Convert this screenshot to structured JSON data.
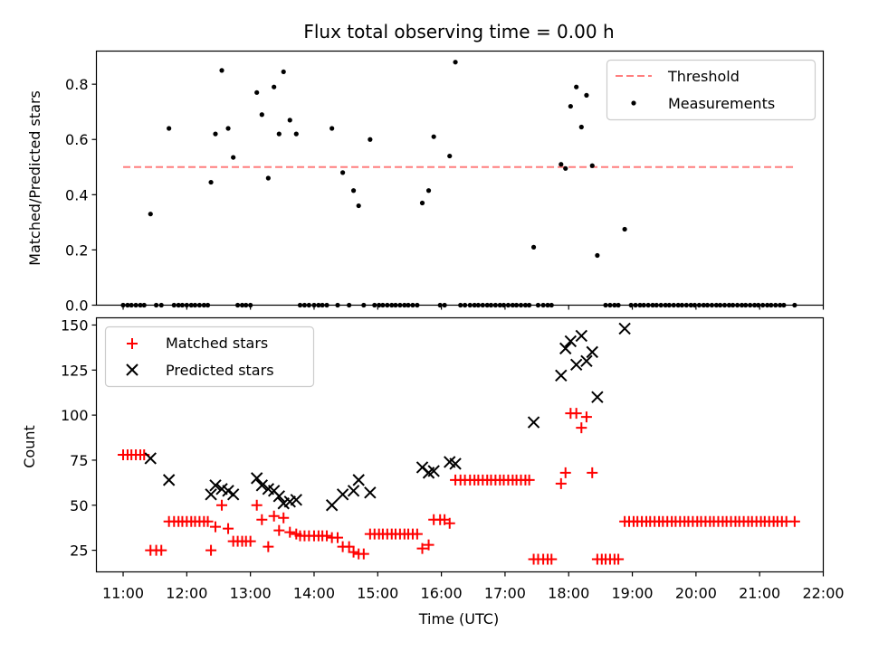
{
  "chart_data": [
    {
      "type": "scatter",
      "title": "Flux total observing time = 0.00 h",
      "xlabel": "",
      "ylabel": "Matched/Predicted stars",
      "xlim_hours": [
        10.58,
        22.0
      ],
      "ylim": [
        0,
        0.92
      ],
      "yticks": [
        0.0,
        0.2,
        0.4,
        0.6,
        0.8
      ],
      "ytick_labels": [
        "0.0",
        "0.2",
        "0.4",
        "0.6",
        "0.8"
      ],
      "threshold": {
        "name": "Threshold",
        "value": 0.5,
        "x_start": 11.0,
        "x_end": 21.55,
        "color": "#ff7f7f"
      },
      "series": [
        {
          "name": "Measurements",
          "color": "#000000",
          "x": [
            11.43,
            11.72,
            12.38,
            12.45,
            12.55,
            12.65,
            12.73,
            13.1,
            13.18,
            13.28,
            13.37,
            13.45,
            13.52,
            13.62,
            13.72,
            14.28,
            14.45,
            14.62,
            14.7,
            14.88,
            15.7,
            15.8,
            15.88,
            16.13,
            16.22,
            17.45,
            17.88,
            17.95,
            18.03,
            18.12,
            18.2,
            18.28,
            18.37,
            18.45,
            18.88,
            11.0,
            11.07,
            11.13,
            11.2,
            11.27,
            11.33,
            11.52,
            11.6,
            11.8,
            11.87,
            11.93,
            12.0,
            12.07,
            12.13,
            12.2,
            12.27,
            12.33,
            12.8,
            12.87,
            12.93,
            13.0,
            13.78,
            13.85,
            13.92,
            14.0,
            14.07,
            14.13,
            14.2,
            14.37,
            14.55,
            14.78,
            14.95,
            15.02,
            15.08,
            15.15,
            15.22,
            15.28,
            15.35,
            15.42,
            15.48,
            15.55,
            15.62,
            15.98,
            16.05,
            16.3,
            16.37,
            16.45,
            16.52,
            16.58,
            16.65,
            16.72,
            16.78,
            16.85,
            16.92,
            16.98,
            17.05,
            17.12,
            17.18,
            17.25,
            17.32,
            17.38,
            17.52,
            17.6,
            17.67,
            17.73,
            18.58,
            18.65,
            18.72,
            18.78,
            18.98,
            19.05,
            19.12,
            19.18,
            19.25,
            19.32,
            19.38,
            19.45,
            19.52,
            19.58,
            19.65,
            19.72,
            19.78,
            19.85,
            19.92,
            19.98,
            20.05,
            20.12,
            20.18,
            20.25,
            20.32,
            20.38,
            20.45,
            20.52,
            20.58,
            20.65,
            20.72,
            20.78,
            20.85,
            20.92,
            20.98,
            21.05,
            21.12,
            21.18,
            21.25,
            21.32,
            21.38,
            21.55
          ],
          "values": [
            0.33,
            0.64,
            0.445,
            0.62,
            0.85,
            0.64,
            0.535,
            0.77,
            0.69,
            0.46,
            0.79,
            0.62,
            0.845,
            0.67,
            0.62,
            0.64,
            0.48,
            0.415,
            0.36,
            0.6,
            0.37,
            0.415,
            0.61,
            0.54,
            0.88,
            0.21,
            0.51,
            0.495,
            0.72,
            0.79,
            0.645,
            0.76,
            0.505,
            0.18,
            0.275,
            0,
            0,
            0,
            0,
            0,
            0,
            0,
            0,
            0,
            0,
            0,
            0,
            0,
            0,
            0,
            0,
            0,
            0,
            0,
            0,
            0,
            0,
            0,
            0,
            0,
            0,
            0,
            0,
            0,
            0,
            0,
            0,
            0,
            0,
            0,
            0,
            0,
            0,
            0,
            0,
            0,
            0,
            0,
            0,
            0,
            0,
            0,
            0,
            0,
            0,
            0,
            0,
            0,
            0,
            0,
            0,
            0,
            0,
            0,
            0,
            0,
            0,
            0,
            0,
            0,
            0,
            0,
            0,
            0,
            0,
            0,
            0,
            0,
            0,
            0,
            0,
            0,
            0,
            0,
            0,
            0,
            0,
            0,
            0,
            0,
            0,
            0,
            0,
            0,
            0,
            0,
            0,
            0,
            0,
            0,
            0,
            0,
            0,
            0,
            0,
            0,
            0,
            0,
            0,
            0,
            0,
            0
          ]
        }
      ],
      "legend": {
        "placement": "top-right",
        "entries": [
          "Threshold",
          "Measurements"
        ]
      }
    },
    {
      "type": "scatter",
      "title": "",
      "xlabel": "Time (UTC)",
      "ylabel": "Count",
      "xlim_hours": [
        10.58,
        22.0
      ],
      "ylim": [
        13,
        154
      ],
      "xticks": [
        11,
        12,
        13,
        14,
        15,
        16,
        17,
        18,
        19,
        20,
        21,
        22
      ],
      "xtick_labels": [
        "11:00",
        "12:00",
        "13:00",
        "14:00",
        "15:00",
        "16:00",
        "17:00",
        "18:00",
        "19:00",
        "20:00",
        "21:00",
        "22:00"
      ],
      "yticks": [
        25,
        50,
        75,
        100,
        125,
        150
      ],
      "ytick_labels": [
        "25",
        "50",
        "75",
        "100",
        "125",
        "150"
      ],
      "series": [
        {
          "name": "Matched stars",
          "marker": "plus",
          "color": "#ff0000",
          "x": [
            11.0,
            11.07,
            11.13,
            11.2,
            11.27,
            11.33,
            11.43,
            11.52,
            11.6,
            11.72,
            11.8,
            11.87,
            11.93,
            12.0,
            12.07,
            12.13,
            12.2,
            12.27,
            12.33,
            12.38,
            12.45,
            12.55,
            12.65,
            12.73,
            12.8,
            12.87,
            12.93,
            13.0,
            13.1,
            13.18,
            13.28,
            13.37,
            13.45,
            13.52,
            13.62,
            13.72,
            13.78,
            13.85,
            13.92,
            14.0,
            14.07,
            14.13,
            14.2,
            14.28,
            14.37,
            14.45,
            14.55,
            14.62,
            14.7,
            14.78,
            14.88,
            14.95,
            15.02,
            15.08,
            15.15,
            15.22,
            15.28,
            15.35,
            15.42,
            15.48,
            15.55,
            15.62,
            15.7,
            15.8,
            15.88,
            15.98,
            16.05,
            16.13,
            16.22,
            16.3,
            16.37,
            16.45,
            16.52,
            16.58,
            16.65,
            16.72,
            16.78,
            16.85,
            16.92,
            16.98,
            17.05,
            17.12,
            17.18,
            17.25,
            17.32,
            17.38,
            17.45,
            17.52,
            17.6,
            17.67,
            17.73,
            17.88,
            17.95,
            18.03,
            18.12,
            18.2,
            18.28,
            18.37,
            18.45,
            18.52,
            18.58,
            18.65,
            18.72,
            18.78,
            18.88,
            18.95,
            19.02,
            19.08,
            19.15,
            19.22,
            19.28,
            19.35,
            19.42,
            19.48,
            19.55,
            19.62,
            19.68,
            19.75,
            19.82,
            19.88,
            19.95,
            20.02,
            20.08,
            20.15,
            20.22,
            20.28,
            20.35,
            20.42,
            20.48,
            20.55,
            20.62,
            20.68,
            20.75,
            20.82,
            20.88,
            20.95,
            21.02,
            21.08,
            21.15,
            21.22,
            21.28,
            21.35,
            21.42,
            21.55
          ],
          "values": [
            78,
            78,
            78,
            78,
            78,
            78,
            25,
            25,
            25,
            41,
            41,
            41,
            41,
            41,
            41,
            41,
            41,
            41,
            41,
            25,
            38,
            50,
            37,
            30,
            30,
            30,
            30,
            30,
            50,
            42,
            27,
            44,
            36,
            43,
            35,
            34,
            33,
            33,
            33,
            33,
            33,
            33,
            33,
            32,
            32,
            27,
            27,
            24,
            23,
            23,
            34,
            34,
            34,
            34,
            34,
            34,
            34,
            34,
            34,
            34,
            34,
            34,
            26,
            28,
            42,
            42,
            42,
            40,
            64,
            64,
            64,
            64,
            64,
            64,
            64,
            64,
            64,
            64,
            64,
            64,
            64,
            64,
            64,
            64,
            64,
            64,
            20,
            20,
            20,
            20,
            20,
            62,
            68,
            101,
            101,
            93,
            99,
            68,
            20,
            20,
            20,
            20,
            20,
            20,
            41,
            41,
            41,
            41,
            41,
            41,
            41,
            41,
            41,
            41,
            41,
            41,
            41,
            41,
            41,
            41,
            41,
            41,
            41,
            41,
            41,
            41,
            41,
            41,
            41,
            41,
            41,
            41,
            41,
            41,
            41,
            41,
            41,
            41,
            41,
            41,
            41,
            41,
            41,
            41
          ]
        },
        {
          "name": "Predicted stars",
          "marker": "x",
          "color": "#000000",
          "x": [
            11.43,
            11.72,
            12.38,
            12.45,
            12.55,
            12.65,
            12.73,
            13.1,
            13.18,
            13.28,
            13.37,
            13.45,
            13.52,
            13.62,
            13.72,
            14.28,
            14.45,
            14.62,
            14.7,
            14.88,
            15.7,
            15.8,
            15.88,
            16.13,
            16.22,
            17.45,
            17.88,
            17.95,
            18.03,
            18.12,
            18.2,
            18.28,
            18.37,
            18.45,
            18.88
          ],
          "values": [
            76,
            64,
            56,
            61,
            59,
            58,
            56,
            65,
            61,
            59,
            58,
            55,
            51,
            52,
            53,
            50,
            56,
            58,
            64,
            57,
            71,
            68,
            69,
            74,
            73,
            96,
            122,
            137,
            141,
            128,
            144,
            130,
            135,
            110,
            148
          ]
        }
      ],
      "legend": {
        "placement": "top-left",
        "entries": [
          "Matched stars",
          "Predicted stars"
        ]
      }
    }
  ]
}
